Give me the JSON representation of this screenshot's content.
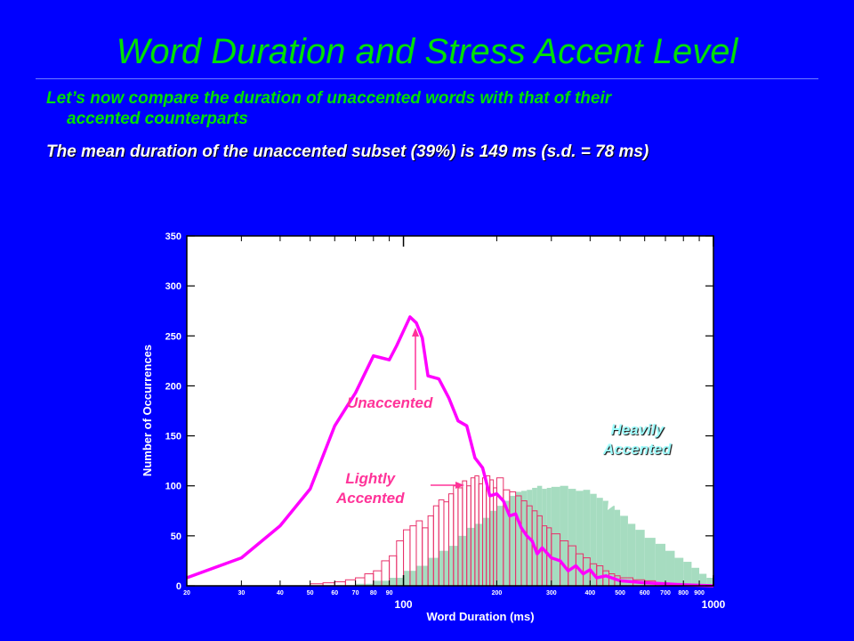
{
  "slide": {
    "title": "Word Duration and Stress Accent Level",
    "bullet1_line1": "Let’s now compare the duration of unaccented words with that of their",
    "bullet1_line2": "accented counterparts",
    "bullet2": "The mean duration of the unaccented subset (39%) is 149 ms (s.d. = 78 ms)"
  },
  "chart_data": {
    "type": "bar",
    "title": "",
    "xlabel": "Word Duration (ms)",
    "ylabel": "Number of Occurrences",
    "x_scale": "log",
    "xlim": [
      20,
      1000
    ],
    "ylim": [
      0,
      350
    ],
    "y_ticks": [
      0,
      50,
      100,
      150,
      200,
      250,
      300,
      350
    ],
    "x_minor_ticks": [
      20,
      30,
      40,
      50,
      60,
      70,
      80,
      90,
      200,
      300,
      400,
      500,
      600,
      700,
      800,
      900
    ],
    "x_major_ticks": [
      100,
      1000
    ],
    "grid": false,
    "annotations": {
      "unaccented": "Unaccented",
      "lightly_1": "Lightly",
      "lightly_2": "Accented",
      "heavily_1": "Heavily",
      "heavily_2": "Accented"
    },
    "colors": {
      "unaccented": "#ff00ff",
      "lightly": "#e8306a",
      "heavily_fill": "#a6dcc0",
      "annotation_magenta": "#ff3399",
      "annotation_cyan": "#a0ffff"
    },
    "series": [
      {
        "kind": "line",
        "x": [
          20,
          30,
          40,
          50,
          60,
          70,
          80,
          85,
          90,
          95,
          100,
          105,
          110,
          115,
          120,
          130,
          140,
          150,
          160,
          170,
          180,
          190,
          200,
          210,
          220,
          230,
          240,
          250,
          260,
          270,
          280,
          300,
          320,
          340,
          360,
          380,
          400,
          420,
          450,
          500,
          550,
          600,
          700,
          800,
          1000
        ],
        "y": [
          8,
          28,
          60,
          97,
          160,
          193,
          230,
          228,
          226,
          240,
          255,
          269,
          263,
          248,
          210,
          207,
          188,
          165,
          160,
          128,
          118,
          90,
          92,
          85,
          70,
          72,
          58,
          50,
          45,
          32,
          38,
          28,
          25,
          15,
          20,
          12,
          16,
          8,
          10,
          5,
          4,
          3,
          2,
          1,
          0
        ]
      },
      {
        "kind": "step",
        "x": [
          50,
          55,
          60,
          65,
          70,
          75,
          80,
          85,
          90,
          95,
          100,
          105,
          110,
          115,
          120,
          125,
          130,
          135,
          140,
          145,
          150,
          155,
          160,
          165,
          170,
          175,
          180,
          185,
          190,
          195,
          200,
          210,
          220,
          230,
          240,
          250,
          260,
          270,
          280,
          290,
          300,
          320,
          340,
          360,
          380,
          400,
          420,
          440,
          460,
          480,
          500,
          550,
          600,
          650,
          700
        ],
        "y": [
          2,
          3,
          4,
          6,
          8,
          12,
          15,
          25,
          30,
          45,
          56,
          60,
          65,
          58,
          70,
          80,
          86,
          84,
          92,
          100,
          98,
          105,
          100,
          108,
          110,
          102,
          108,
          110,
          106,
          98,
          108,
          96,
          94,
          90,
          85,
          80,
          75,
          70,
          60,
          58,
          52,
          45,
          40,
          32,
          28,
          22,
          20,
          15,
          12,
          10,
          8,
          6,
          5,
          3,
          2
        ]
      },
      {
        "kind": "step",
        "x": [
          70,
          80,
          90,
          100,
          110,
          120,
          130,
          140,
          150,
          160,
          170,
          180,
          190,
          200,
          210,
          220,
          230,
          240,
          250,
          260,
          270,
          280,
          290,
          300,
          320,
          340,
          360,
          380,
          400,
          420,
          440,
          460,
          480,
          500,
          530,
          560,
          600,
          650,
          700,
          750,
          800,
          850,
          900,
          950
        ],
        "y": [
          2,
          5,
          8,
          15,
          20,
          28,
          35,
          40,
          50,
          58,
          62,
          68,
          75,
          80,
          85,
          90,
          94,
          95,
          96,
          98,
          100,
          97,
          98,
          99,
          100,
          97,
          95,
          96,
          92,
          88,
          85,
          80,
          76,
          70,
          62,
          56,
          48,
          42,
          35,
          28,
          24,
          18,
          12,
          8
        ]
      }
    ]
  }
}
